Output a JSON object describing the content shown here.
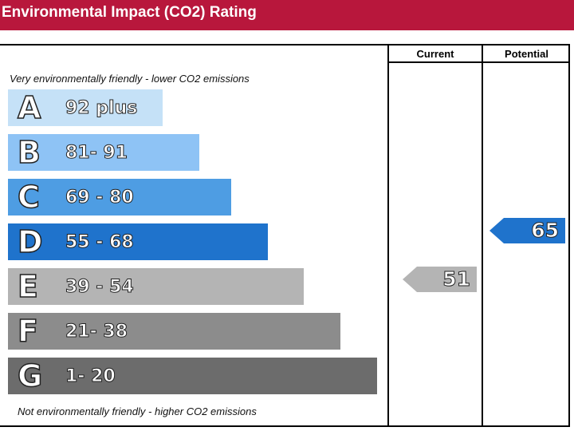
{
  "header": {
    "title": "Environmental Impact (CO2) Rating"
  },
  "columns": {
    "current": "Current",
    "potential": "Potential"
  },
  "notes": {
    "top": "Very environmentally friendly - lower CO2 emissions",
    "bottom": "Not environmentally friendly - higher CO2 emissions"
  },
  "chart_data": {
    "type": "bar",
    "title": "Environmental Impact (CO2) Rating",
    "categories": [
      "A",
      "B",
      "C",
      "D",
      "E",
      "F",
      "G"
    ],
    "ranges": [
      "92 plus",
      "81- 91",
      "69 - 80",
      "55 - 68",
      "39 - 54",
      "21- 38",
      "1- 20"
    ],
    "colors": [
      "#c5e1f7",
      "#8ec3f5",
      "#4e9de3",
      "#1f73cc",
      "#b4b4b4",
      "#8c8c8c",
      "#6c6c6c"
    ],
    "current": {
      "value": 51,
      "band": "E",
      "color": "#b4b4b4"
    },
    "potential": {
      "value": 65,
      "band": "D",
      "color": "#1f73cc"
    }
  }
}
